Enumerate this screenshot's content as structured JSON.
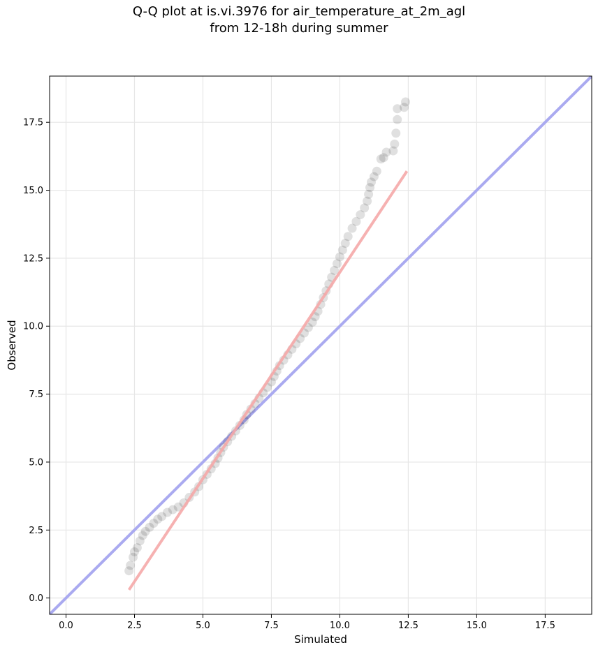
{
  "chart_data": {
    "type": "scatter",
    "title": [
      "Q-Q plot at is.vi.3976 for air_temperature_at_2m_agl",
      "from 12-18h during summer"
    ],
    "xlabel": "Simulated",
    "ylabel": "Observed",
    "xlim": [
      -0.6,
      19.2
    ],
    "ylim": [
      -0.6,
      19.2
    ],
    "xticks": [
      "0.0",
      "2.5",
      "5.0",
      "7.5",
      "10.0",
      "12.5",
      "15.0",
      "17.5"
    ],
    "yticks": [
      "0.0",
      "2.5",
      "5.0",
      "7.5",
      "10.0",
      "12.5",
      "15.0",
      "17.5"
    ],
    "grid": true,
    "colors": {
      "points": "#000000",
      "identity_line": "#aaaaf0",
      "fit_line": "#f5a8a8"
    },
    "points": [
      [
        2.3,
        1.0
      ],
      [
        2.35,
        1.2
      ],
      [
        2.45,
        1.5
      ],
      [
        2.5,
        1.7
      ],
      [
        2.6,
        1.85
      ],
      [
        2.7,
        2.1
      ],
      [
        2.8,
        2.3
      ],
      [
        2.9,
        2.45
      ],
      [
        3.05,
        2.6
      ],
      [
        3.2,
        2.75
      ],
      [
        3.35,
        2.9
      ],
      [
        3.5,
        3.0
      ],
      [
        3.7,
        3.15
      ],
      [
        3.9,
        3.25
      ],
      [
        4.1,
        3.35
      ],
      [
        4.3,
        3.5
      ],
      [
        4.5,
        3.7
      ],
      [
        4.7,
        3.9
      ],
      [
        4.85,
        4.1
      ],
      [
        5.0,
        4.35
      ],
      [
        5.15,
        4.55
      ],
      [
        5.3,
        4.75
      ],
      [
        5.45,
        4.95
      ],
      [
        5.55,
        5.15
      ],
      [
        5.65,
        5.35
      ],
      [
        5.75,
        5.55
      ],
      [
        5.9,
        5.75
      ],
      [
        6.05,
        5.95
      ],
      [
        6.2,
        6.15
      ],
      [
        6.35,
        6.35
      ],
      [
        6.5,
        6.55
      ],
      [
        6.6,
        6.75
      ],
      [
        6.75,
        6.95
      ],
      [
        6.9,
        7.15
      ],
      [
        7.05,
        7.35
      ],
      [
        7.2,
        7.55
      ],
      [
        7.35,
        7.75
      ],
      [
        7.5,
        7.95
      ],
      [
        7.6,
        8.15
      ],
      [
        7.7,
        8.35
      ],
      [
        7.8,
        8.55
      ],
      [
        7.95,
        8.75
      ],
      [
        8.1,
        8.95
      ],
      [
        8.25,
        9.15
      ],
      [
        8.4,
        9.35
      ],
      [
        8.55,
        9.55
      ],
      [
        8.7,
        9.75
      ],
      [
        8.85,
        9.95
      ],
      [
        9.0,
        10.15
      ],
      [
        9.1,
        10.35
      ],
      [
        9.2,
        10.55
      ],
      [
        9.3,
        10.8
      ],
      [
        9.4,
        11.05
      ],
      [
        9.5,
        11.3
      ],
      [
        9.6,
        11.55
      ],
      [
        9.7,
        11.8
      ],
      [
        9.8,
        12.05
      ],
      [
        9.9,
        12.3
      ],
      [
        10.0,
        12.55
      ],
      [
        10.1,
        12.8
      ],
      [
        10.2,
        13.05
      ],
      [
        10.3,
        13.3
      ],
      [
        10.45,
        13.6
      ],
      [
        10.6,
        13.85
      ],
      [
        10.75,
        14.1
      ],
      [
        10.9,
        14.35
      ],
      [
        11.0,
        14.6
      ],
      [
        11.05,
        14.85
      ],
      [
        11.1,
        15.1
      ],
      [
        11.15,
        15.3
      ],
      [
        11.25,
        15.5
      ],
      [
        11.35,
        15.7
      ],
      [
        11.5,
        16.15
      ],
      [
        11.6,
        16.2
      ],
      [
        11.7,
        16.4
      ],
      [
        11.95,
        16.45
      ],
      [
        12.0,
        16.7
      ],
      [
        12.05,
        17.1
      ],
      [
        12.1,
        17.6
      ],
      [
        12.1,
        18.0
      ],
      [
        12.35,
        18.05
      ],
      [
        12.4,
        18.25
      ]
    ],
    "identity_line": [
      [
        -0.6,
        -0.6
      ],
      [
        19.2,
        19.2
      ]
    ],
    "fit_line": [
      [
        2.3,
        0.3
      ],
      [
        12.45,
        15.7
      ]
    ]
  }
}
